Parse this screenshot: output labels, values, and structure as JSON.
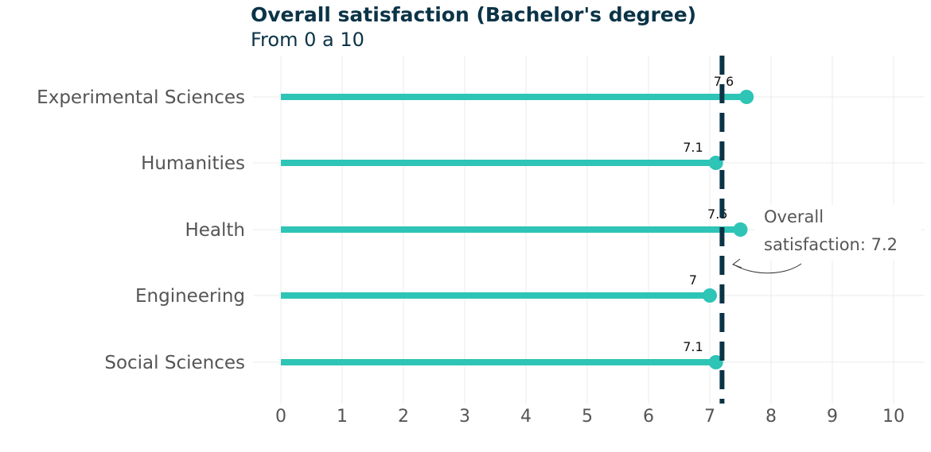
{
  "chart_data": {
    "type": "bar",
    "orientation": "horizontal",
    "style": "lollipop",
    "title": "Overall satisfaction (Bachelor's degree)",
    "subtitle": "From 0 a 10",
    "categories": [
      "Experimental Sciences",
      "Humanities",
      "Health",
      "Engineering",
      "Social Sciences"
    ],
    "values": [
      7.6,
      7.1,
      7.5,
      7,
      7.1
    ],
    "value_labels": [
      "7.6",
      "7.1",
      "7.5",
      "7",
      "7.1"
    ],
    "xlim": [
      0,
      10
    ],
    "x_ticks": [
      "0",
      "1",
      "2",
      "3",
      "4",
      "5",
      "6",
      "7",
      "8",
      "9",
      "10"
    ],
    "reference_line": {
      "value": 7.2,
      "style": "dashed"
    },
    "annotation": {
      "line1": "Overall",
      "line2": "satisfaction: 7.2"
    },
    "grid": true,
    "colors": {
      "lollipop": "#2ec4b6",
      "reference": "#0b3347",
      "title": "#0b3347",
      "grid": "#ebebeb"
    }
  }
}
